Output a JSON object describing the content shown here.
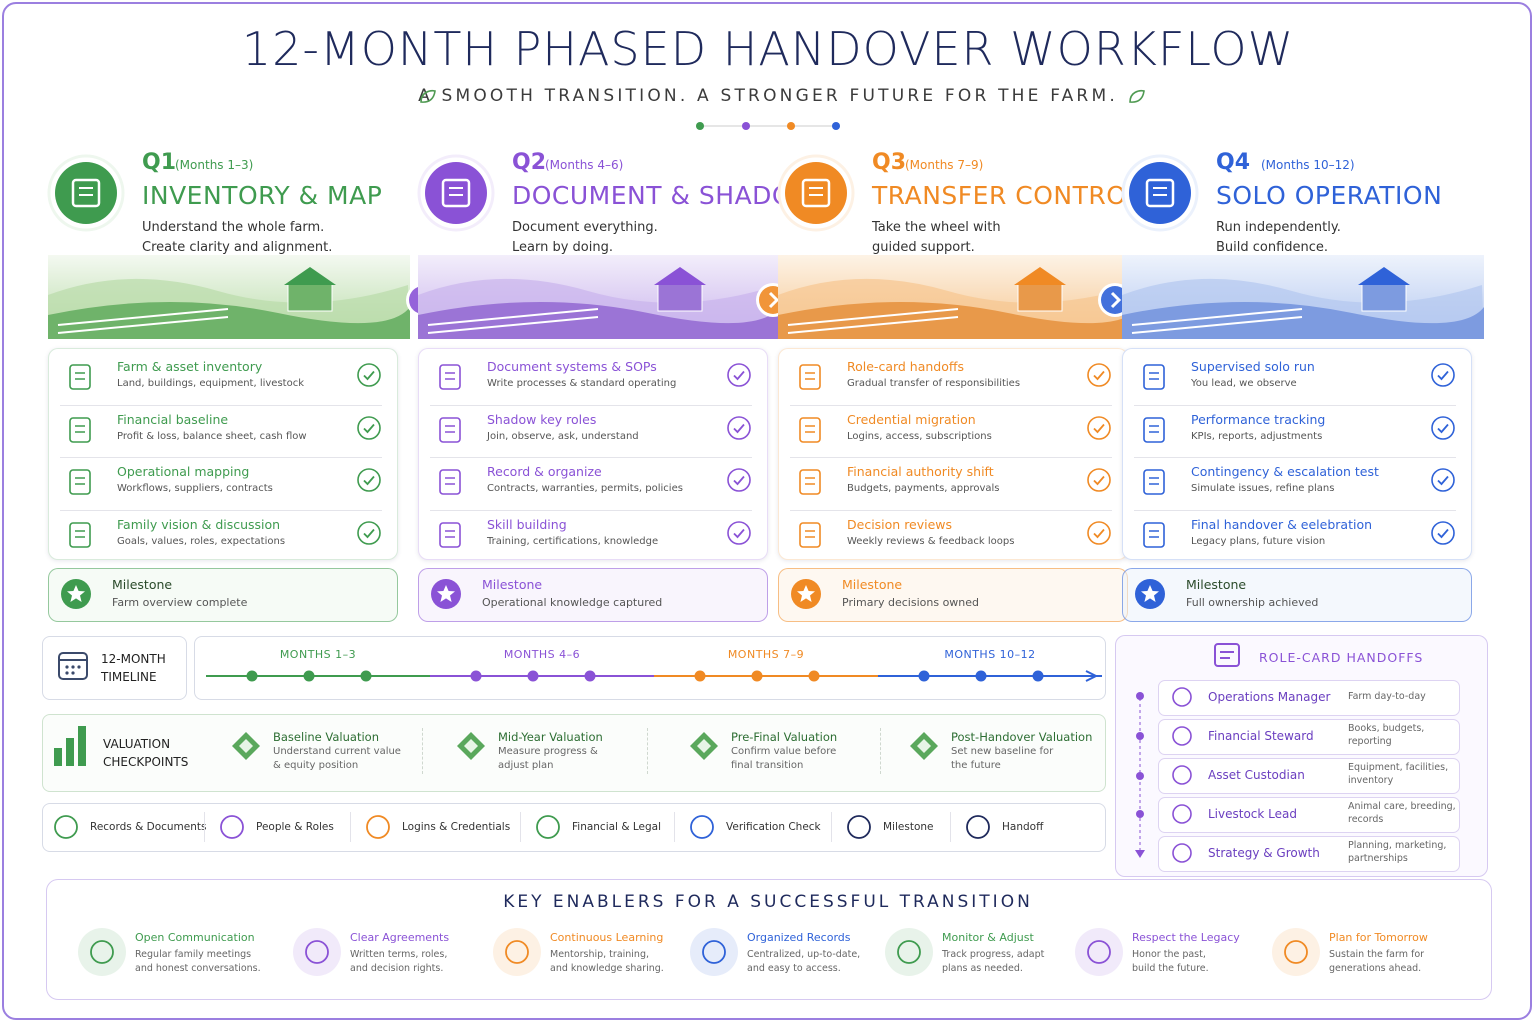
{
  "header": {
    "title": "12-MONTH PHASED HANDOVER WORKFLOW",
    "subtitle": "A SMOOTH TRANSITION. A STRONGER FUTURE FOR THE FARM."
  },
  "phases": [
    {
      "quarter": "Q1",
      "months": "(Months 1–3)",
      "title": "INVENTORY & MAP",
      "description": [
        "Understand the whole farm.",
        "Create clarity and alignment."
      ],
      "tasks": [
        {
          "title": "Farm & asset inventory",
          "subtitle": "Land, buildings, equipment, livestock"
        },
        {
          "title": "Financial baseline",
          "subtitle": "Profit & loss, balance sheet, cash flow"
        },
        {
          "title": "Operational mapping",
          "subtitle": "Workflows, suppliers, contracts"
        },
        {
          "title": "Family vision & discussion",
          "subtitle": "Goals, values, roles, expectations"
        }
      ],
      "milestone": {
        "label": "Milestone",
        "text": "Farm overview complete"
      }
    },
    {
      "quarter": "Q2",
      "months": "(Months 4–6)",
      "title": "DOCUMENT & SHADOW",
      "description": [
        "Document everything.",
        "Learn by doing."
      ],
      "tasks": [
        {
          "title": "Document systems & SOPs",
          "subtitle": "Write processes & standard operating"
        },
        {
          "title": "Shadow key roles",
          "subtitle": "Join, observe, ask, understand"
        },
        {
          "title": "Record & organize",
          "subtitle": "Contracts, warranties, permits, policies"
        },
        {
          "title": "Skill building",
          "subtitle": "Training, certifications, knowledge"
        }
      ],
      "milestone": {
        "label": "Milestone",
        "text": "Operational knowledge captured"
      }
    },
    {
      "quarter": "Q3",
      "months": "(Months 7–9)",
      "title": "TRANSFER CONTROL",
      "description": [
        "Take the wheel with",
        "guided support."
      ],
      "tasks": [
        {
          "title": "Role-card handoffs",
          "subtitle": "Gradual transfer of responsibilities"
        },
        {
          "title": "Credential migration",
          "subtitle": "Logins, access, subscriptions"
        },
        {
          "title": "Financial authority shift",
          "subtitle": "Budgets, payments, approvals"
        },
        {
          "title": "Decision reviews",
          "subtitle": "Weekly reviews & feedback loops"
        }
      ],
      "milestone": {
        "label": "Milestone",
        "text": "Primary decisions owned"
      }
    },
    {
      "quarter": "Q4",
      "months": "(Months 10–12)",
      "title": "SOLO OPERATION",
      "description": [
        "Run independently.",
        "Build confidence."
      ],
      "tasks": [
        {
          "title": "Supervised solo run",
          "subtitle": "You lead, we observe"
        },
        {
          "title": "Performance tracking",
          "subtitle": "KPIs, reports, adjustments"
        },
        {
          "title": "Contingency & escalation test",
          "subtitle": "Simulate issues, refine plans"
        },
        {
          "title": "Final handover & eelebration",
          "subtitle": "Legacy plans, future vision"
        }
      ],
      "milestone": {
        "label": "Milestone",
        "text": "Full ownership achieved"
      }
    }
  ],
  "timeline": {
    "label": [
      "12-MONTH",
      "TIMELINE"
    ],
    "segments": [
      "MONTHS 1–3",
      "MONTHS 4–6",
      "MONTHS 7–9",
      "MONTHS 10–12"
    ]
  },
  "valuation": {
    "label": [
      "VALUATION",
      "CHECKPOINTS"
    ],
    "items": [
      {
        "title": "Baseline Valuation",
        "lines": [
          "Understand current value",
          "& equity position"
        ]
      },
      {
        "title": "Mid-Year Valuation",
        "lines": [
          "Measure progress &",
          "adjust plan"
        ]
      },
      {
        "title": "Pre-Final Valuation",
        "lines": [
          "Confirm value before",
          "final transition"
        ]
      },
      {
        "title": "Post-Handover Valuation",
        "lines": [
          "Set new baseline for",
          "the future"
        ]
      }
    ]
  },
  "legend": [
    "Records & Documents",
    "People & Roles",
    "Logins & Credentials",
    "Financial & Legal",
    "Verification Check",
    "Milestone",
    "Handoff"
  ],
  "roles": {
    "title": "ROLE-CARD HANDOFFS",
    "items": [
      {
        "name": "Operations Manager",
        "description": [
          "Farm day-to-day"
        ]
      },
      {
        "name": "Financial Steward",
        "description": [
          "Books, budgets,",
          "reporting"
        ]
      },
      {
        "name": "Asset Custodian",
        "description": [
          "Equipment, facilities,",
          "inventory"
        ]
      },
      {
        "name": "Livestock Lead",
        "description": [
          "Animal care, breeding,",
          "records"
        ]
      },
      {
        "name": "Strategy & Growth",
        "description": [
          "Planning, marketing,",
          "partnerships"
        ]
      }
    ]
  },
  "enablers": {
    "title": "KEY ENABLERS FOR A SUCCESSFUL TRANSITION",
    "items": [
      {
        "title": "Open Communication",
        "lines": [
          "Regular family meetings",
          "and honest conversations."
        ]
      },
      {
        "title": "Clear Agreements",
        "lines": [
          "Written terms, roles,",
          "and decision rights."
        ]
      },
      {
        "title": "Continuous Learning",
        "lines": [
          "Mentorship, training,",
          "and knowledge sharing."
        ]
      },
      {
        "title": "Organized Records",
        "lines": [
          "Centralized, up-to-date,",
          "and easy to access."
        ]
      },
      {
        "title": "Monitor & Adjust",
        "lines": [
          "Track progress, adapt",
          "plans as needed."
        ]
      },
      {
        "title": "Respect the Legacy",
        "lines": [
          "Honor the past,",
          "build the future."
        ]
      },
      {
        "title": "Plan for Tomorrow",
        "lines": [
          "Sustain the farm for",
          "generations ahead."
        ]
      }
    ]
  }
}
